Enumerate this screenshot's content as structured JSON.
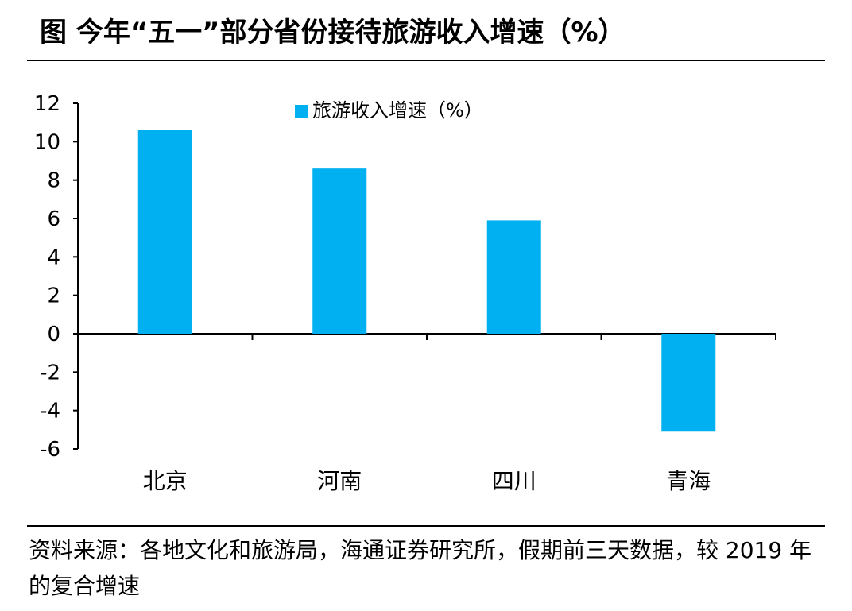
{
  "figure": {
    "title": "图  今年“五一”部分省份接待旅游收入增速（%）",
    "source": "资料来源：各地文化和旅游局，海通证券研究所，假期前三天数据，较 2019 年的复合增速"
  },
  "chart_data": {
    "type": "bar",
    "categories": [
      "北京",
      "河南",
      "四川",
      "青海"
    ],
    "series": [
      {
        "name": "旅游收入增速（%）",
        "values": [
          10.6,
          8.6,
          5.9,
          -5.1
        ],
        "color": "#00B0F0"
      }
    ],
    "ylim": [
      -6,
      12
    ],
    "yticks": [
      "12",
      "10",
      "8",
      "6",
      "4",
      "2",
      "0",
      "-2",
      "-4",
      "-6"
    ],
    "grid": false,
    "legend_position": "top-center"
  }
}
